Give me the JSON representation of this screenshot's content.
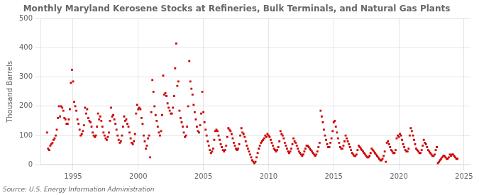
{
  "chart_data": {
    "type": "scatter",
    "title": "Monthly Maryland Kerosene Stocks at Refineries, Bulk Terminals, and Natural Gas Plants",
    "ylabel": "Thousand Barrels",
    "annotations": [
      "Source: U.S. Energy Information Administration"
    ],
    "color": "#cc0000",
    "marker": "square",
    "grid": true,
    "xlim": [
      1992.5,
      2025.5
    ],
    "xticks": [
      1995,
      2000,
      2005,
      2010,
      2015,
      2020,
      2025
    ],
    "ylim": [
      0,
      500
    ],
    "yticks": [
      0,
      100,
      200,
      300,
      400,
      500
    ],
    "x": [
      1993.0,
      1993.083,
      1993.167,
      1993.25,
      1993.333,
      1993.417,
      1993.5,
      1993.583,
      1993.667,
      1993.75,
      1993.833,
      1993.917,
      1994.0,
      1994.083,
      1994.167,
      1994.25,
      1994.333,
      1994.417,
      1994.5,
      1994.583,
      1994.667,
      1994.75,
      1994.833,
      1994.917,
      1995.0,
      1995.083,
      1995.167,
      1995.25,
      1995.333,
      1995.417,
      1995.5,
      1995.583,
      1995.667,
      1995.75,
      1995.833,
      1995.917,
      1996.0,
      1996.083,
      1996.167,
      1996.25,
      1996.333,
      1996.417,
      1996.5,
      1996.583,
      1996.667,
      1996.75,
      1996.833,
      1996.917,
      1997.0,
      1997.083,
      1997.167,
      1997.25,
      1997.333,
      1997.417,
      1997.5,
      1997.583,
      1997.667,
      1997.75,
      1997.833,
      1997.917,
      1998.0,
      1998.083,
      1998.167,
      1998.25,
      1998.333,
      1998.417,
      1998.5,
      1998.583,
      1998.667,
      1998.75,
      1998.833,
      1998.917,
      1999.0,
      1999.083,
      1999.167,
      1999.25,
      1999.333,
      1999.417,
      1999.5,
      1999.583,
      1999.667,
      1999.75,
      1999.833,
      1999.917,
      2000.0,
      2000.083,
      2000.167,
      2000.25,
      2000.333,
      2000.417,
      2000.5,
      2000.583,
      2000.667,
      2000.75,
      2000.833,
      2000.917,
      2001.0,
      2001.083,
      2001.167,
      2001.25,
      2001.333,
      2001.417,
      2001.5,
      2001.583,
      2001.667,
      2001.75,
      2001.833,
      2001.917,
      2002.0,
      2002.083,
      2002.167,
      2002.25,
      2002.333,
      2002.417,
      2002.5,
      2002.583,
      2002.667,
      2002.75,
      2002.833,
      2002.917,
      2003.0,
      2003.083,
      2003.167,
      2003.25,
      2003.333,
      2003.417,
      2003.5,
      2003.583,
      2003.667,
      2003.75,
      2003.833,
      2003.917,
      2004.0,
      2004.083,
      2004.167,
      2004.25,
      2004.333,
      2004.417,
      2004.5,
      2004.583,
      2004.667,
      2004.75,
      2004.833,
      2004.917,
      2005.0,
      2005.083,
      2005.167,
      2005.25,
      2005.333,
      2005.417,
      2005.5,
      2005.583,
      2005.667,
      2005.75,
      2005.833,
      2005.917,
      2006.0,
      2006.083,
      2006.167,
      2006.25,
      2006.333,
      2006.417,
      2006.5,
      2006.583,
      2006.667,
      2006.75,
      2006.833,
      2006.917,
      2007.0,
      2007.083,
      2007.167,
      2007.25,
      2007.333,
      2007.417,
      2007.5,
      2007.583,
      2007.667,
      2007.75,
      2007.833,
      2007.917,
      2008.0,
      2008.083,
      2008.167,
      2008.25,
      2008.333,
      2008.417,
      2008.5,
      2008.583,
      2008.667,
      2008.75,
      2008.833,
      2008.917,
      2009.0,
      2009.083,
      2009.167,
      2009.25,
      2009.333,
      2009.417,
      2009.5,
      2009.583,
      2009.667,
      2009.75,
      2009.833,
      2009.917,
      2010.0,
      2010.083,
      2010.167,
      2010.25,
      2010.333,
      2010.417,
      2010.5,
      2010.583,
      2010.667,
      2010.75,
      2010.833,
      2010.917,
      2011.0,
      2011.083,
      2011.167,
      2011.25,
      2011.333,
      2011.417,
      2011.5,
      2011.583,
      2011.667,
      2011.75,
      2011.833,
      2011.917,
      2012.0,
      2012.083,
      2012.167,
      2012.25,
      2012.333,
      2012.417,
      2012.5,
      2012.583,
      2012.667,
      2012.75,
      2012.833,
      2012.917,
      2013.0,
      2013.083,
      2013.167,
      2013.25,
      2013.333,
      2013.417,
      2013.5,
      2013.583,
      2013.667,
      2013.75,
      2013.833,
      2013.917,
      2014.0,
      2014.083,
      2014.167,
      2014.25,
      2014.333,
      2014.417,
      2014.5,
      2014.583,
      2014.667,
      2014.75,
      2014.833,
      2014.917,
      2015.0,
      2015.083,
      2015.167,
      2015.25,
      2015.333,
      2015.417,
      2015.5,
      2015.583,
      2015.667,
      2015.75,
      2015.833,
      2015.917,
      2016.0,
      2016.083,
      2016.167,
      2016.25,
      2016.333,
      2016.417,
      2016.5,
      2016.583,
      2016.667,
      2016.75,
      2016.833,
      2016.917,
      2017.0,
      2017.083,
      2017.167,
      2017.25,
      2017.333,
      2017.417,
      2017.5,
      2017.583,
      2017.667,
      2017.75,
      2017.833,
      2017.917,
      2018.0,
      2018.083,
      2018.167,
      2018.25,
      2018.333,
      2018.417,
      2018.5,
      2018.583,
      2018.667,
      2018.75,
      2018.833,
      2018.917,
      2019.0,
      2019.083,
      2019.167,
      2019.25,
      2019.333,
      2019.417,
      2019.5,
      2019.583,
      2019.667,
      2019.75,
      2019.833,
      2019.917,
      2020.0,
      2020.083,
      2020.167,
      2020.25,
      2020.333,
      2020.417,
      2020.5,
      2020.583,
      2020.667,
      2020.75,
      2020.833,
      2020.917,
      2021.0,
      2021.083,
      2021.167,
      2021.25,
      2021.333,
      2021.417,
      2021.5,
      2021.583,
      2021.667,
      2021.75,
      2021.833,
      2021.917,
      2022.0,
      2022.083,
      2022.167,
      2022.25,
      2022.333,
      2022.417,
      2022.5,
      2022.583,
      2022.667,
      2022.75,
      2022.833,
      2022.917,
      2023.0,
      2023.083,
      2023.167,
      2023.25,
      2023.333,
      2023.417,
      2023.5,
      2023.583,
      2023.667,
      2023.75,
      2023.833,
      2023.917,
      2024.0,
      2024.083,
      2024.167,
      2024.25,
      2024.333,
      2024.417,
      2024.5
    ],
    "values": [
      110,
      55,
      50,
      65,
      70,
      75,
      85,
      90,
      100,
      120,
      160,
      200,
      165,
      200,
      195,
      185,
      160,
      155,
      140,
      140,
      155,
      190,
      280,
      325,
      285,
      215,
      200,
      185,
      155,
      140,
      120,
      100,
      105,
      115,
      135,
      195,
      175,
      190,
      160,
      150,
      145,
      130,
      110,
      100,
      95,
      100,
      130,
      175,
      155,
      165,
      150,
      130,
      110,
      100,
      90,
      85,
      95,
      110,
      150,
      195,
      165,
      170,
      155,
      140,
      120,
      100,
      85,
      75,
      80,
      100,
      130,
      165,
      150,
      155,
      140,
      130,
      110,
      90,
      75,
      70,
      80,
      105,
      175,
      205,
      190,
      195,
      190,
      160,
      140,
      100,
      80,
      55,
      65,
      90,
      100,
      25,
      180,
      290,
      250,
      200,
      170,
      150,
      130,
      110,
      100,
      115,
      170,
      305,
      240,
      245,
      235,
      210,
      195,
      185,
      175,
      175,
      195,
      235,
      330,
      415,
      270,
      285,
      185,
      160,
      145,
      130,
      110,
      95,
      100,
      130,
      200,
      355,
      285,
      260,
      240,
      205,
      180,
      155,
      130,
      115,
      110,
      135,
      175,
      250,
      180,
      145,
      120,
      100,
      80,
      65,
      50,
      40,
      45,
      55,
      85,
      115,
      120,
      115,
      100,
      85,
      70,
      60,
      50,
      45,
      50,
      65,
      95,
      125,
      120,
      115,
      105,
      90,
      75,
      65,
      55,
      50,
      55,
      70,
      100,
      125,
      110,
      105,
      95,
      80,
      65,
      55,
      45,
      35,
      25,
      15,
      10,
      5,
      10,
      25,
      40,
      55,
      65,
      75,
      80,
      85,
      90,
      100,
      95,
      105,
      100,
      95,
      85,
      75,
      65,
      55,
      50,
      45,
      50,
      60,
      80,
      115,
      105,
      100,
      90,
      75,
      65,
      55,
      45,
      40,
      45,
      55,
      70,
      90,
      80,
      75,
      65,
      55,
      45,
      40,
      35,
      30,
      35,
      45,
      55,
      65,
      65,
      60,
      55,
      50,
      45,
      40,
      35,
      30,
      35,
      45,
      60,
      75,
      185,
      165,
      145,
      120,
      100,
      85,
      70,
      60,
      60,
      75,
      90,
      115,
      145,
      150,
      130,
      110,
      90,
      75,
      60,
      55,
      55,
      65,
      80,
      100,
      90,
      80,
      70,
      60,
      50,
      40,
      35,
      30,
      30,
      35,
      50,
      65,
      60,
      55,
      50,
      45,
      40,
      35,
      30,
      25,
      25,
      30,
      40,
      55,
      50,
      45,
      40,
      35,
      30,
      25,
      20,
      15,
      15,
      20,
      30,
      45,
      10,
      75,
      80,
      70,
      60,
      50,
      45,
      40,
      40,
      50,
      90,
      100,
      95,
      105,
      100,
      85,
      70,
      60,
      50,
      45,
      45,
      55,
      100,
      125,
      115,
      100,
      85,
      70,
      55,
      50,
      45,
      40,
      40,
      50,
      65,
      85,
      75,
      70,
      60,
      50,
      45,
      40,
      35,
      30,
      30,
      35,
      50,
      60,
      5,
      10,
      15,
      20,
      25,
      30,
      30,
      25,
      20,
      20,
      25,
      35,
      30,
      35,
      35,
      30,
      25,
      20,
      20
    ]
  }
}
